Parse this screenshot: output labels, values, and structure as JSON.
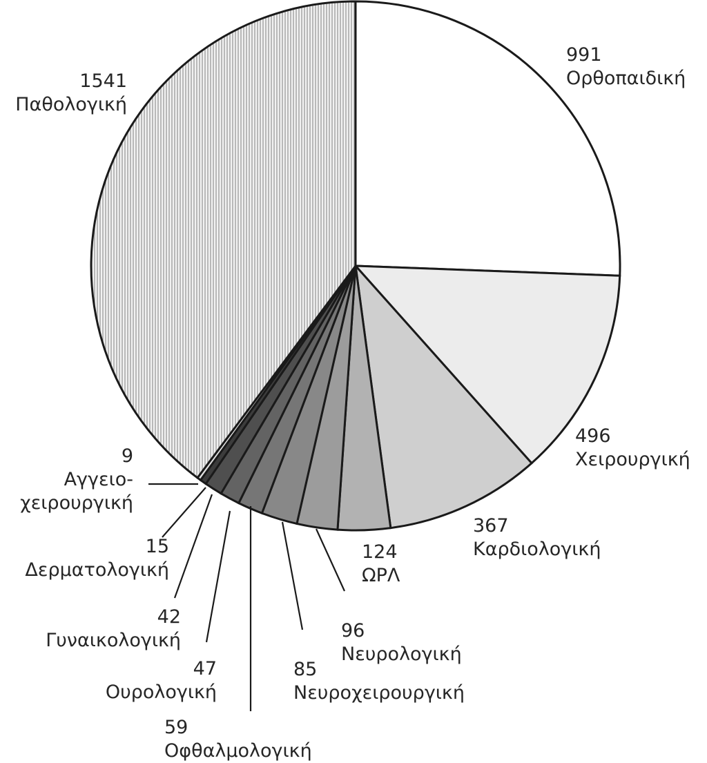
{
  "chart_data": {
    "type": "pie",
    "title": "",
    "slices": [
      {
        "label": "Ορθοπαιδική",
        "value": 991,
        "fill": "#ffffff"
      },
      {
        "label": "Χειρουργική",
        "value": 496,
        "fill": "#ececec"
      },
      {
        "label": "Καρδιολογική",
        "value": 367,
        "fill": "#cfcfcf"
      },
      {
        "label": "ΩΡΛ",
        "value": 124,
        "fill": "#b2b2b2"
      },
      {
        "label": "Νευρολογική",
        "value": 96,
        "fill": "#9c9c9c"
      },
      {
        "label": "Νευροχειρουργική",
        "value": 85,
        "fill": "#888888"
      },
      {
        "label": "Οφθαλμολογική",
        "value": 59,
        "fill": "#767676"
      },
      {
        "label": "Ουρολογική",
        "value": 47,
        "fill": "#636363"
      },
      {
        "label": "Γυναικολογική",
        "value": 42,
        "fill": "#4f4f4f"
      },
      {
        "label": "Δερματολογική",
        "value": 15,
        "fill": "#3c3c3c"
      },
      {
        "label": "Αγγειο-\nχειρουργική",
        "value": 9,
        "fill": "#e0e0e0"
      },
      {
        "label": "Παθολογική",
        "value": 1541,
        "fill": "#e6e6e6",
        "pattern": "vertical-lines"
      }
    ]
  }
}
